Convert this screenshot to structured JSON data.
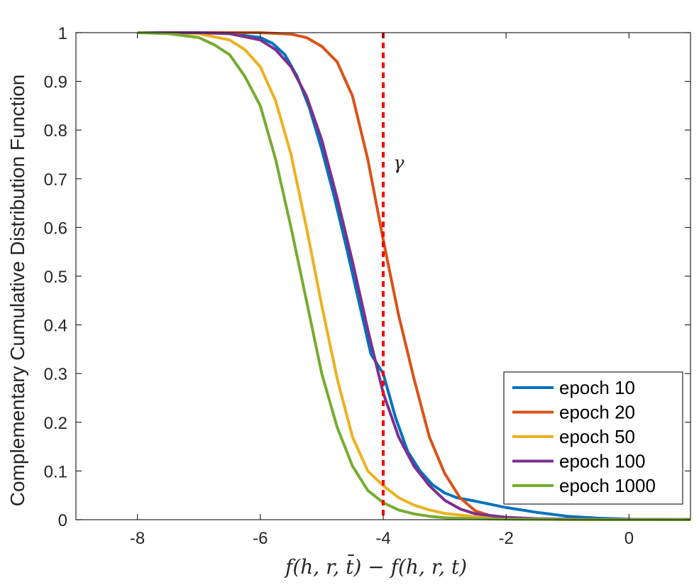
{
  "chart_data": {
    "type": "line",
    "title": "",
    "xlabel": "f(h, r, t̄) − f(h, r, t)",
    "ylabel": "Complementary Cumulative Distribution Function",
    "xlim": [
      -9,
      1
    ],
    "ylim": [
      0,
      1
    ],
    "xticks": [
      -8,
      -6,
      -4,
      -2,
      0
    ],
    "xtick_labels": [
      "-8",
      "-6",
      "-4",
      "-2",
      "0"
    ],
    "yticks": [
      0,
      0.1,
      0.2,
      0.3,
      0.4,
      0.5,
      0.6,
      0.7,
      0.8,
      0.9,
      1
    ],
    "ytick_labels": [
      "0",
      "0.1",
      "0.2",
      "0.3",
      "0.4",
      "0.5",
      "0.6",
      "0.7",
      "0.8",
      "0.9",
      "1"
    ],
    "grid": false,
    "legend_position": "bottom-right",
    "annotation": {
      "label": "γ",
      "x": -4,
      "color": "#ff0000",
      "style": "dashed vertical line"
    },
    "series": [
      {
        "name": "epoch 10",
        "color": "#0072BD",
        "x": [
          -8,
          -7.5,
          -7,
          -6.5,
          -6,
          -5.8,
          -5.6,
          -5.4,
          -5.2,
          -5.0,
          -4.8,
          -4.6,
          -4.4,
          -4.2,
          -4.0,
          -3.8,
          -3.6,
          -3.4,
          -3.2,
          -3.0,
          -2.8,
          -2.5,
          -2.0,
          -1.5,
          -1.0,
          -0.5,
          0,
          0.5,
          1
        ],
        "values": [
          1,
          1,
          1,
          0.998,
          0.99,
          0.978,
          0.955,
          0.91,
          0.845,
          0.76,
          0.665,
          0.56,
          0.45,
          0.34,
          0.3,
          0.21,
          0.14,
          0.1,
          0.072,
          0.055,
          0.045,
          0.038,
          0.025,
          0.015,
          0.007,
          0.003,
          0.001,
          0.0005,
          0.0002
        ]
      },
      {
        "name": "epoch 20",
        "color": "#D95319",
        "x": [
          -8,
          -7,
          -6.5,
          -6,
          -5.5,
          -5.25,
          -5.0,
          -4.75,
          -4.5,
          -4.25,
          -4.0,
          -3.75,
          -3.5,
          -3.25,
          -3.0,
          -2.75,
          -2.5,
          -2.25,
          -2.0,
          -1.5,
          -1.0,
          0,
          1
        ],
        "values": [
          1,
          1,
          1,
          1,
          0.997,
          0.99,
          0.972,
          0.94,
          0.87,
          0.74,
          0.575,
          0.42,
          0.29,
          0.17,
          0.095,
          0.045,
          0.018,
          0.008,
          0.004,
          0.001,
          0.0005,
          0.0002,
          0.0001
        ]
      },
      {
        "name": "epoch 50",
        "color": "#EDB120",
        "x": [
          -8,
          -7.5,
          -7,
          -6.5,
          -6.25,
          -6.0,
          -5.75,
          -5.5,
          -5.25,
          -5.0,
          -4.75,
          -4.5,
          -4.25,
          -4.0,
          -3.75,
          -3.5,
          -3.25,
          -3.0,
          -2.5,
          -2.0,
          -1.0,
          0,
          1
        ],
        "values": [
          1,
          1,
          0.998,
          0.985,
          0.965,
          0.93,
          0.86,
          0.75,
          0.6,
          0.44,
          0.29,
          0.17,
          0.1,
          0.07,
          0.045,
          0.03,
          0.02,
          0.013,
          0.006,
          0.003,
          0.001,
          0.0003,
          0.0001
        ]
      },
      {
        "name": "epoch 100",
        "color": "#7E2F8E",
        "x": [
          -8,
          -7,
          -6.5,
          -6.0,
          -5.75,
          -5.5,
          -5.25,
          -5.0,
          -4.75,
          -4.5,
          -4.25,
          -4.0,
          -3.75,
          -3.5,
          -3.25,
          -3.0,
          -2.75,
          -2.5,
          -2.0,
          -1.5,
          -1.0,
          0,
          1
        ],
        "values": [
          1,
          1,
          0.998,
          0.985,
          0.965,
          0.93,
          0.87,
          0.78,
          0.66,
          0.53,
          0.39,
          0.26,
          0.17,
          0.11,
          0.07,
          0.04,
          0.022,
          0.012,
          0.005,
          0.002,
          0.001,
          0.0003,
          0.0001
        ]
      },
      {
        "name": "epoch 1000",
        "color": "#77AC30",
        "x": [
          -8,
          -7.5,
          -7,
          -6.75,
          -6.5,
          -6.25,
          -6.0,
          -5.75,
          -5.5,
          -5.25,
          -5.0,
          -4.75,
          -4.5,
          -4.25,
          -4.0,
          -3.75,
          -3.5,
          -3.25,
          -3.0,
          -2.5,
          -2.0,
          -1.0,
          0,
          1
        ],
        "values": [
          1,
          0.998,
          0.99,
          0.975,
          0.955,
          0.91,
          0.85,
          0.74,
          0.6,
          0.45,
          0.3,
          0.19,
          0.11,
          0.06,
          0.035,
          0.02,
          0.012,
          0.007,
          0.004,
          0.002,
          0.001,
          0.0005,
          0.0002,
          0.0001
        ]
      }
    ]
  }
}
